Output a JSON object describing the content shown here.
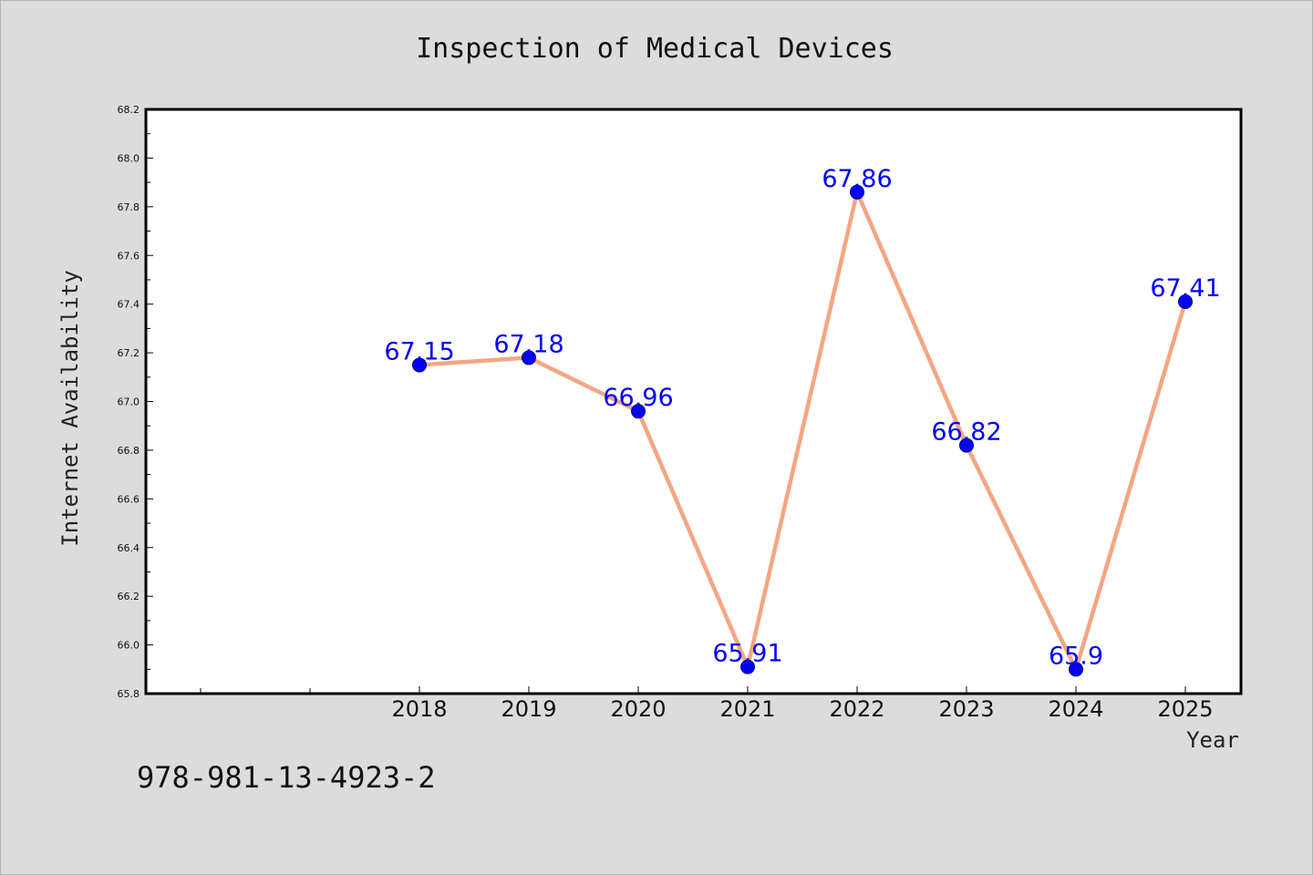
{
  "chart_data": {
    "type": "line",
    "title": "Inspection of Medical Devices",
    "xlabel": "Year",
    "ylabel": "Internet Availability",
    "x": [
      "2018",
      "2019",
      "2020",
      "2021",
      "2022",
      "2023",
      "2024",
      "2025"
    ],
    "values": [
      67.15,
      67.18,
      66.96,
      65.91,
      67.86,
      66.82,
      65.9,
      67.41
    ],
    "data_labels": [
      "67.15",
      "67.18",
      "66.96",
      "65.91",
      "67.86",
      "66.82",
      "65.9",
      "67.41"
    ],
    "ylim": [
      65.8,
      68.2
    ],
    "yticks": [
      "65.8",
      "66.0",
      "66.2",
      "66.4",
      "66.6",
      "66.8",
      "67.0",
      "67.2",
      "67.4",
      "67.6",
      "67.8",
      "68.0",
      "68.2"
    ],
    "grid": false,
    "line_color": "#f4a582",
    "marker_color": "#0000ff",
    "label_color": "#0000ff"
  },
  "footer": {
    "isbn": "978-981-13-4923-2"
  }
}
